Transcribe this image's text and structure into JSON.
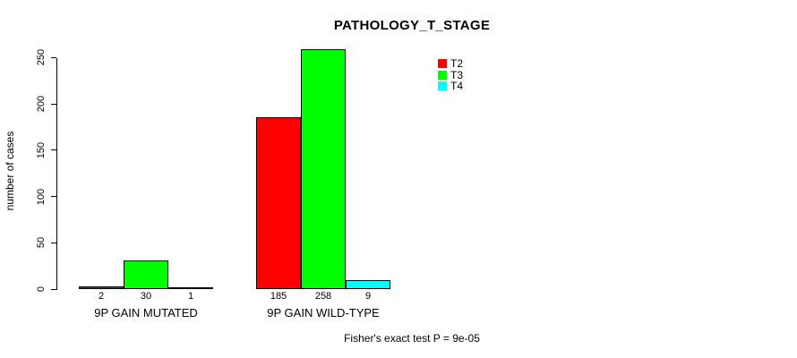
{
  "chart_data": {
    "type": "bar",
    "title": "PATHOLOGY_T_STAGE",
    "ylabel": "number of cases",
    "xlabel": "",
    "categories": [
      "9P GAIN MUTATED",
      "9P GAIN WILD-TYPE"
    ],
    "series": [
      {
        "name": "T2",
        "color": "#ff0000",
        "values": [
          2,
          185
        ]
      },
      {
        "name": "T3",
        "color": "#00ff00",
        "values": [
          30,
          258
        ]
      },
      {
        "name": "T4",
        "color": "#00ffff",
        "values": [
          1,
          9
        ]
      }
    ],
    "bar_value_labels": [
      [
        "2",
        "30",
        "1"
      ],
      [
        "185",
        "258",
        "9"
      ]
    ],
    "yticks": [
      "0",
      "50",
      "100",
      "150",
      "200",
      "250"
    ],
    "ylim": [
      0,
      258
    ],
    "grid": false,
    "legend_position": "top-right-inside",
    "annotation": "Fisher's exact test P = 9e-05"
  },
  "colors": {
    "background": "#ffffff",
    "axis": "#000000",
    "text": "#000000"
  }
}
